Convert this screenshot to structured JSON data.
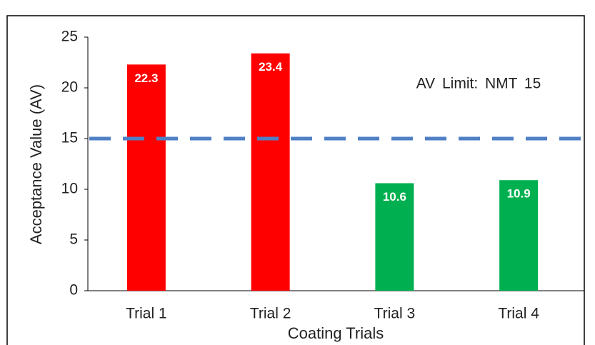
{
  "chart_data": {
    "type": "bar",
    "categories": [
      "Trial 1",
      "Trial 2",
      "Trial 3",
      "Trial 4"
    ],
    "values": [
      22.3,
      23.4,
      10.6,
      10.9
    ],
    "colors": [
      "#ff0000",
      "#ff0000",
      "#00b050",
      "#00b050"
    ],
    "ylim": [
      0,
      25
    ],
    "yticks": [
      0,
      5,
      10,
      15,
      20,
      25
    ],
    "y_label": "Acceptance Value (AV)",
    "x_label": "Coating Trials",
    "limit": 15,
    "limit_color": "#4f7fc4",
    "annotation": "AV Limit: NMT 15"
  }
}
